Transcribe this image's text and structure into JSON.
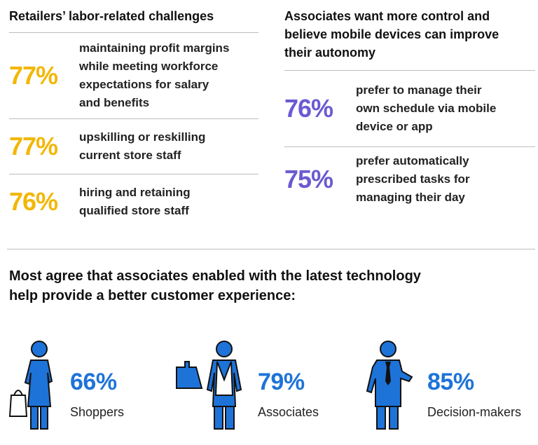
{
  "left": {
    "title": "Retailers’ labor-related challenges",
    "stats": [
      {
        "value": "77%",
        "lines": [
          "maintaining profit margins",
          "while meeting workforce",
          "expectations for salary",
          "and benefits"
        ]
      },
      {
        "value": "77%",
        "lines": [
          "upskilling or reskilling",
          "current store staff"
        ]
      },
      {
        "value": "76%",
        "lines": [
          "hiring and retaining",
          "qualified store staff"
        ]
      }
    ]
  },
  "right": {
    "title_lines": [
      "Associates want more control and",
      "believe mobile devices can improve",
      "their autonomy"
    ],
    "stats": [
      {
        "value": "76%",
        "lines": [
          "prefer to manage their",
          "own schedule via mobile",
          "device or app"
        ]
      },
      {
        "value": "75%",
        "lines": [
          "prefer automatically",
          "prescribed tasks for",
          "managing their day"
        ]
      }
    ]
  },
  "bottom": {
    "title_lines": [
      "Most agree that associates enabled with the latest technology",
      "help provide a better customer experience:"
    ],
    "groups": [
      {
        "value": "66%",
        "label": "Shoppers",
        "icon": "shopper-icon"
      },
      {
        "value": "79%",
        "label": "Associates",
        "icon": "associate-icon"
      },
      {
        "value": "85%",
        "label": "Decision-makers",
        "icon": "decision-maker-icon"
      }
    ]
  },
  "colors": {
    "gold": "#f2b705",
    "purple": "#6a5ad2",
    "blue": "#1e73d8"
  }
}
